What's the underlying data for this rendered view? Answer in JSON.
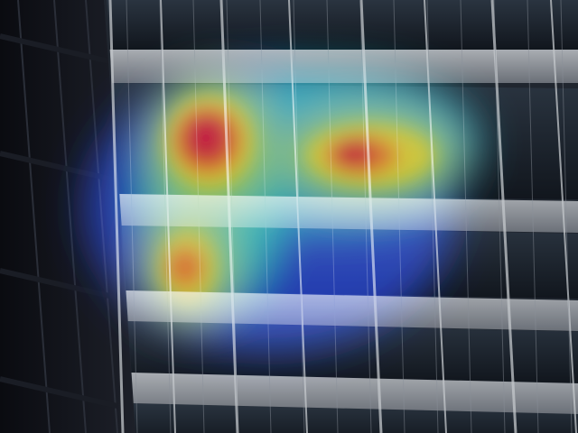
{
  "scene": {
    "subject": "office-building-facade",
    "overlay": "attention-heatmap"
  },
  "colors": {
    "sky_dark": "#06070d",
    "left_wall": "#15181f",
    "facade_frame": "#8e939a",
    "window_glass": "#1c2530",
    "heat_low": "#1428c8",
    "heat_mid": "#19d3c8",
    "heat_high": "#f2e41c",
    "heat_peak": "#e4001a"
  },
  "heatmap": {
    "hotspots": [
      {
        "name": "upper-left-peak",
        "intensity": 1.0
      },
      {
        "name": "upper-center-peak",
        "intensity": 0.9
      },
      {
        "name": "mid-left-peak",
        "intensity": 0.85
      }
    ]
  }
}
